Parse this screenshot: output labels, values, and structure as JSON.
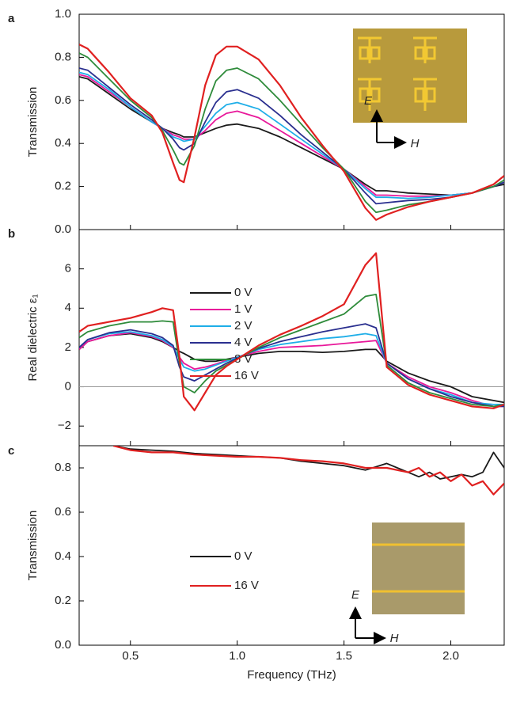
{
  "chart_data": [
    {
      "type": "line",
      "panel_label": "a",
      "ylabel": "Transmission",
      "x": [
        0.26,
        0.3,
        0.4,
        0.5,
        0.6,
        0.65,
        0.7,
        0.73,
        0.75,
        0.8,
        0.85,
        0.9,
        0.95,
        1.0,
        1.1,
        1.2,
        1.3,
        1.4,
        1.5,
        1.6,
        1.65,
        1.7,
        1.8,
        1.9,
        2.0,
        2.1,
        2.2,
        2.25
      ],
      "series": [
        {
          "color": "#1a1a1a",
          "values": [
            0.71,
            0.7,
            0.63,
            0.56,
            0.5,
            0.47,
            0.45,
            0.44,
            0.43,
            0.43,
            0.45,
            0.47,
            0.485,
            0.49,
            0.47,
            0.43,
            0.38,
            0.33,
            0.28,
            0.21,
            0.18,
            0.18,
            0.17,
            0.165,
            0.16,
            0.17,
            0.2,
            0.21
          ]
        },
        {
          "color": "#e8189a",
          "values": [
            0.72,
            0.71,
            0.64,
            0.57,
            0.5,
            0.47,
            0.44,
            0.43,
            0.42,
            0.42,
            0.46,
            0.51,
            0.54,
            0.55,
            0.52,
            0.46,
            0.4,
            0.34,
            0.28,
            0.2,
            0.16,
            0.16,
            0.155,
            0.155,
            0.16,
            0.17,
            0.2,
            0.22
          ]
        },
        {
          "color": "#1eaee8",
          "values": [
            0.73,
            0.72,
            0.65,
            0.57,
            0.5,
            0.47,
            0.43,
            0.42,
            0.41,
            0.42,
            0.48,
            0.54,
            0.58,
            0.59,
            0.56,
            0.49,
            0.42,
            0.35,
            0.28,
            0.19,
            0.15,
            0.15,
            0.145,
            0.15,
            0.16,
            0.17,
            0.2,
            0.22
          ]
        },
        {
          "color": "#2a2f8f",
          "values": [
            0.75,
            0.74,
            0.66,
            0.58,
            0.51,
            0.47,
            0.42,
            0.38,
            0.37,
            0.4,
            0.5,
            0.59,
            0.64,
            0.65,
            0.61,
            0.53,
            0.44,
            0.36,
            0.28,
            0.17,
            0.12,
            0.125,
            0.135,
            0.14,
            0.15,
            0.17,
            0.2,
            0.22
          ]
        },
        {
          "color": "#2e8b3a",
          "values": [
            0.82,
            0.8,
            0.7,
            0.6,
            0.52,
            0.46,
            0.37,
            0.31,
            0.3,
            0.39,
            0.56,
            0.69,
            0.74,
            0.75,
            0.7,
            0.6,
            0.49,
            0.38,
            0.28,
            0.13,
            0.08,
            0.09,
            0.115,
            0.13,
            0.15,
            0.17,
            0.2,
            0.23
          ]
        },
        {
          "color": "#e02020",
          "values": [
            0.86,
            0.84,
            0.73,
            0.61,
            0.53,
            0.45,
            0.31,
            0.23,
            0.22,
            0.43,
            0.67,
            0.81,
            0.85,
            0.85,
            0.79,
            0.67,
            0.52,
            0.39,
            0.27,
            0.1,
            0.045,
            0.07,
            0.105,
            0.13,
            0.15,
            0.17,
            0.21,
            0.25
          ]
        }
      ],
      "xlim": [
        0.26,
        2.25
      ],
      "ylim": [
        0,
        1.0
      ],
      "yticks": [
        {
          "value": 0,
          "label": "0.0"
        },
        {
          "value": 0.2,
          "label": "0.2"
        },
        {
          "value": 0.4,
          "label": "0.4"
        },
        {
          "value": 0.6,
          "label": "0.6"
        },
        {
          "value": 0.8,
          "label": "0.8"
        },
        {
          "value": 1.0,
          "label": "1.0"
        }
      ],
      "inset_labels": [
        "E",
        "H"
      ]
    },
    {
      "type": "line",
      "panel_label": "b",
      "ylabel": "Real dielectric ε₁",
      "x": [
        0.26,
        0.3,
        0.4,
        0.5,
        0.6,
        0.65,
        0.7,
        0.73,
        0.75,
        0.8,
        0.85,
        0.9,
        0.95,
        1.0,
        1.1,
        1.2,
        1.3,
        1.4,
        1.5,
        1.6,
        1.65,
        1.7,
        1.8,
        1.9,
        2.0,
        2.1,
        2.2,
        2.25
      ],
      "series": [
        {
          "name": "0 V",
          "color": "#1a1a1a",
          "values": [
            1.9,
            2.3,
            2.6,
            2.7,
            2.5,
            2.3,
            2.0,
            1.8,
            1.7,
            1.4,
            1.3,
            1.3,
            1.4,
            1.5,
            1.7,
            1.8,
            1.8,
            1.75,
            1.8,
            1.9,
            1.9,
            1.3,
            0.7,
            0.3,
            0.0,
            -0.5,
            -0.7,
            -0.8
          ]
        },
        {
          "name": "1 V",
          "color": "#e8189a",
          "values": [
            1.9,
            2.3,
            2.6,
            2.75,
            2.55,
            2.35,
            2.0,
            1.5,
            1.2,
            0.9,
            1.0,
            1.15,
            1.35,
            1.5,
            1.8,
            2.0,
            2.05,
            2.1,
            2.2,
            2.3,
            2.35,
            1.2,
            0.5,
            0.0,
            -0.3,
            -0.7,
            -1.0,
            -1.0
          ]
        },
        {
          "name": "2 V",
          "color": "#1eaee8",
          "values": [
            2.0,
            2.4,
            2.7,
            2.8,
            2.6,
            2.4,
            2.05,
            1.4,
            1.0,
            0.8,
            0.9,
            1.1,
            1.3,
            1.5,
            1.9,
            2.15,
            2.3,
            2.45,
            2.55,
            2.7,
            2.6,
            1.2,
            0.4,
            -0.1,
            -0.4,
            -0.8,
            -0.9,
            -0.9
          ]
        },
        {
          "name": "4 V",
          "color": "#2a2f8f",
          "values": [
            2.0,
            2.4,
            2.75,
            2.9,
            2.7,
            2.5,
            2.1,
            1.0,
            0.5,
            0.3,
            0.6,
            0.9,
            1.2,
            1.45,
            1.95,
            2.3,
            2.55,
            2.8,
            3.0,
            3.2,
            3.0,
            1.2,
            0.4,
            -0.1,
            -0.5,
            -0.8,
            -1.0,
            -1.0
          ]
        },
        {
          "name": "8 V",
          "color": "#2e8b3a",
          "values": [
            2.5,
            2.8,
            3.1,
            3.3,
            3.3,
            3.35,
            3.3,
            1.2,
            0.0,
            -0.3,
            0.3,
            0.8,
            1.1,
            1.4,
            2.0,
            2.5,
            2.9,
            3.3,
            3.7,
            4.6,
            4.7,
            1.1,
            0.2,
            -0.3,
            -0.6,
            -0.9,
            -1.0,
            -0.9
          ]
        },
        {
          "name": "16 V",
          "color": "#e02020",
          "values": [
            2.8,
            3.1,
            3.3,
            3.5,
            3.8,
            4.0,
            3.9,
            1.5,
            -0.5,
            -1.2,
            -0.3,
            0.6,
            1.05,
            1.4,
            2.1,
            2.65,
            3.1,
            3.6,
            4.2,
            6.2,
            6.8,
            1.0,
            0.1,
            -0.4,
            -0.7,
            -1.0,
            -1.1,
            -0.9
          ]
        }
      ],
      "xlim": [
        0.26,
        2.25
      ],
      "ylim": [
        -3,
        8
      ],
      "yticks": [
        {
          "value": -2,
          "label": "−2"
        },
        0,
        2,
        4,
        6
      ],
      "zero_line": true,
      "legend": "upper left"
    },
    {
      "type": "line",
      "panel_label": "c",
      "ylabel": "Transmission",
      "xlabel": "Frequency (THz)",
      "x": [
        0.42,
        0.5,
        0.6,
        0.7,
        0.8,
        0.9,
        1.0,
        1.1,
        1.2,
        1.3,
        1.4,
        1.5,
        1.6,
        1.7,
        1.8,
        1.85,
        1.9,
        1.95,
        2.0,
        2.05,
        2.1,
        2.15,
        2.2,
        2.25
      ],
      "series": [
        {
          "name": "0 V",
          "color": "#1a1a1a",
          "values": [
            0.9,
            0.885,
            0.88,
            0.875,
            0.865,
            0.86,
            0.855,
            0.85,
            0.845,
            0.83,
            0.82,
            0.81,
            0.79,
            0.82,
            0.78,
            0.76,
            0.78,
            0.75,
            0.76,
            0.77,
            0.76,
            0.78,
            0.87,
            0.8
          ]
        },
        {
          "name": "16 V",
          "color": "#e02020",
          "values": [
            0.9,
            0.88,
            0.87,
            0.87,
            0.86,
            0.855,
            0.85,
            0.85,
            0.845,
            0.835,
            0.83,
            0.82,
            0.8,
            0.8,
            0.78,
            0.8,
            0.76,
            0.78,
            0.74,
            0.77,
            0.72,
            0.74,
            0.68,
            0.73
          ]
        }
      ],
      "xlim": [
        0.26,
        2.25
      ],
      "ylim": [
        0,
        0.9
      ],
      "xticks": [
        0.5,
        1.0,
        1.5,
        2.0
      ],
      "xtick_labels": [
        "0.5",
        "1.0",
        "1.5",
        "2.0"
      ],
      "yticks": [
        {
          "value": 0,
          "label": "0.0"
        },
        {
          "value": 0.2,
          "label": "0.2"
        },
        {
          "value": 0.4,
          "label": "0.4"
        },
        {
          "value": 0.6,
          "label": "0.6"
        },
        {
          "value": 0.8,
          "label": "0.8"
        }
      ],
      "legend": "upper left",
      "inset_labels": [
        "E",
        "H"
      ]
    }
  ]
}
